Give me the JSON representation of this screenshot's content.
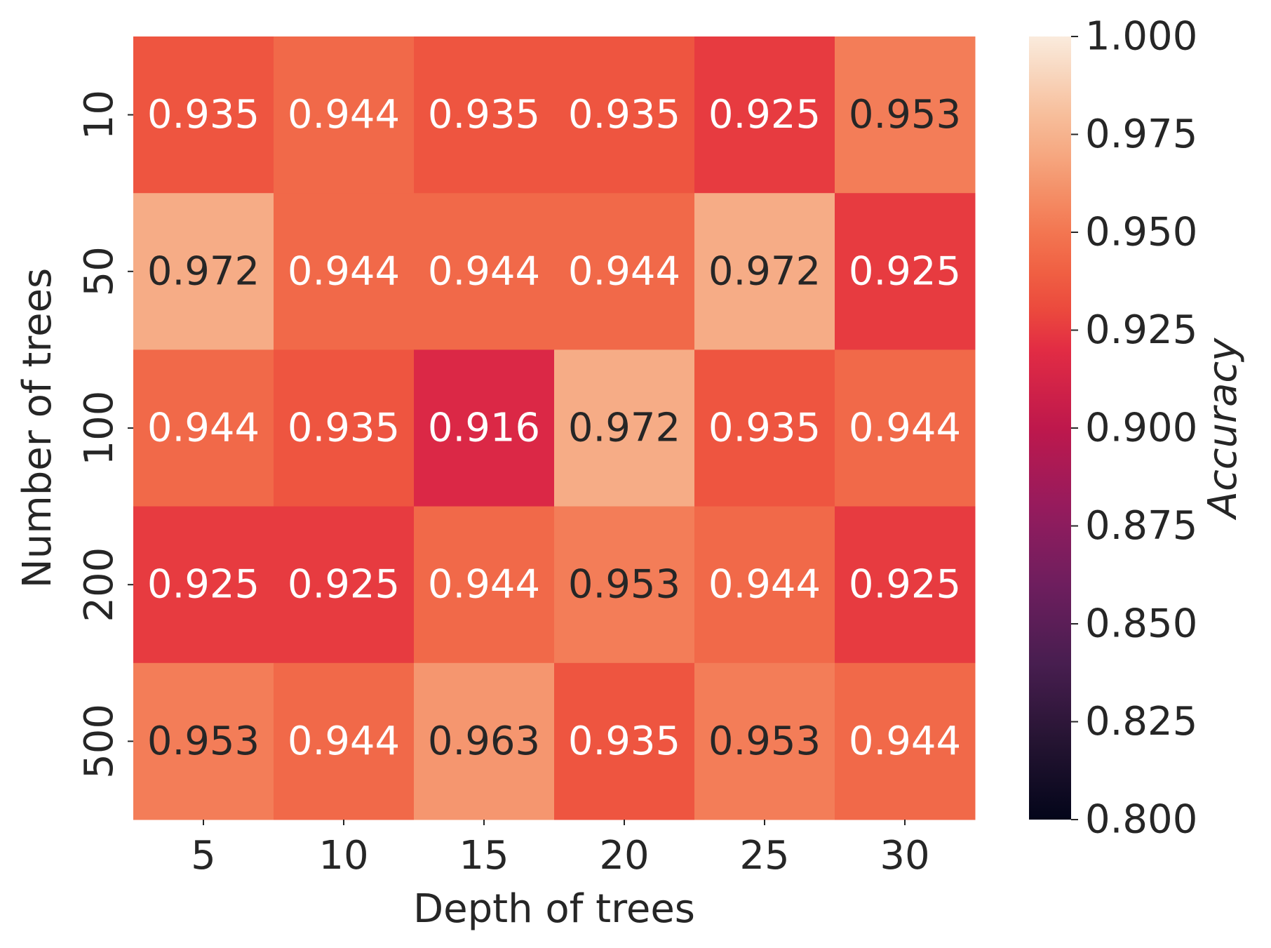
{
  "chart_data": {
    "type": "heatmap",
    "xlabel": "Depth of trees",
    "ylabel": "Number of trees",
    "x_categories": [
      "5",
      "10",
      "15",
      "20",
      "25",
      "30"
    ],
    "y_categories": [
      "10",
      "50",
      "100",
      "200",
      "500"
    ],
    "values": [
      [
        0.935,
        0.944,
        0.935,
        0.935,
        0.925,
        0.953
      ],
      [
        0.972,
        0.944,
        0.944,
        0.944,
        0.972,
        0.925
      ],
      [
        0.944,
        0.935,
        0.916,
        0.972,
        0.935,
        0.944
      ],
      [
        0.925,
        0.925,
        0.944,
        0.953,
        0.944,
        0.925
      ],
      [
        0.953,
        0.944,
        0.963,
        0.935,
        0.953,
        0.944
      ]
    ],
    "colorbar": {
      "label": "Accuracy",
      "range": [
        0.8,
        1.0
      ],
      "ticks": [
        "0.800",
        "0.825",
        "0.850",
        "0.875",
        "0.900",
        "0.925",
        "0.950",
        "0.975",
        "1.000"
      ],
      "colormap": "rocket"
    },
    "grid": false,
    "legend": "colorbar-right"
  }
}
